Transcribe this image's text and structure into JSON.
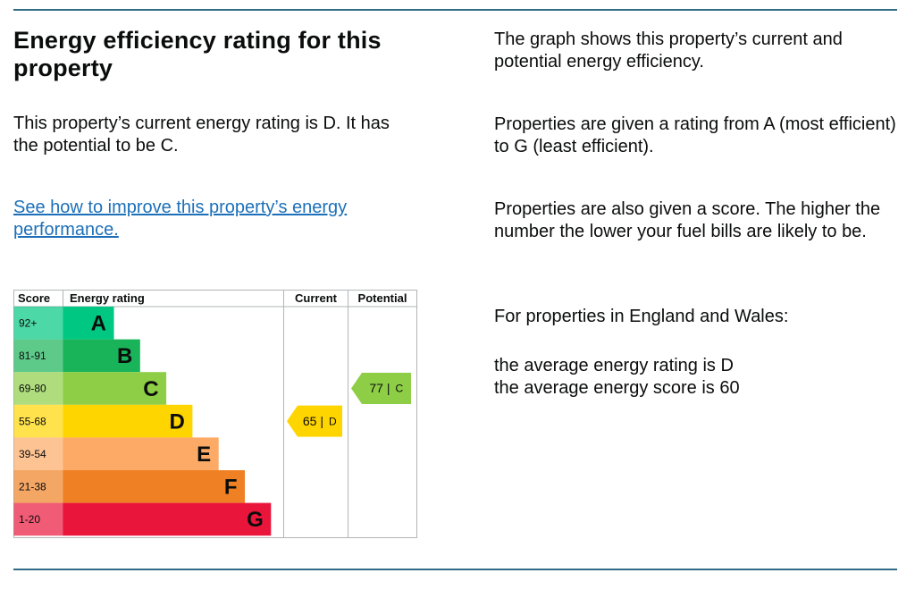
{
  "heading": "Energy efficiency rating for this property",
  "current_summary": "This property’s current energy rating is D. It has the potential to be C.",
  "improve_link": "See how to improve this property’s energy performance.",
  "info": {
    "p1": "The graph shows this property’s current and potential energy efficiency.",
    "p2": "Properties are given a rating from A (most efficient) to G (least efficient).",
    "p3": "Properties are also given a score. The higher the number the lower your fuel bills are likely to be.",
    "p4": "For properties in England and Wales:",
    "p5": "the average energy rating is D",
    "p6": "the average energy score is 60"
  },
  "chart_data": {
    "type": "bar",
    "headers": {
      "score": "Score",
      "rating": "Energy rating",
      "current": "Current",
      "potential": "Potential"
    },
    "bands": [
      {
        "range": "92+",
        "letter": "A",
        "color": "#00c781"
      },
      {
        "range": "81-91",
        "letter": "B",
        "color": "#19b459"
      },
      {
        "range": "69-80",
        "letter": "C",
        "color": "#8dce46"
      },
      {
        "range": "55-68",
        "letter": "D",
        "color": "#ffd500"
      },
      {
        "range": "39-54",
        "letter": "E",
        "color": "#fcaa65"
      },
      {
        "range": "21-38",
        "letter": "F",
        "color": "#ef8023"
      },
      {
        "range": "1-20",
        "letter": "G",
        "color": "#e9153b"
      }
    ],
    "current": {
      "score": 65,
      "band": "D",
      "label": "65 |",
      "letter": "D",
      "color": "#ffd500"
    },
    "potential": {
      "score": 77,
      "band": "C",
      "label": "77 |",
      "letter": "C",
      "color": "#8dce46"
    }
  }
}
